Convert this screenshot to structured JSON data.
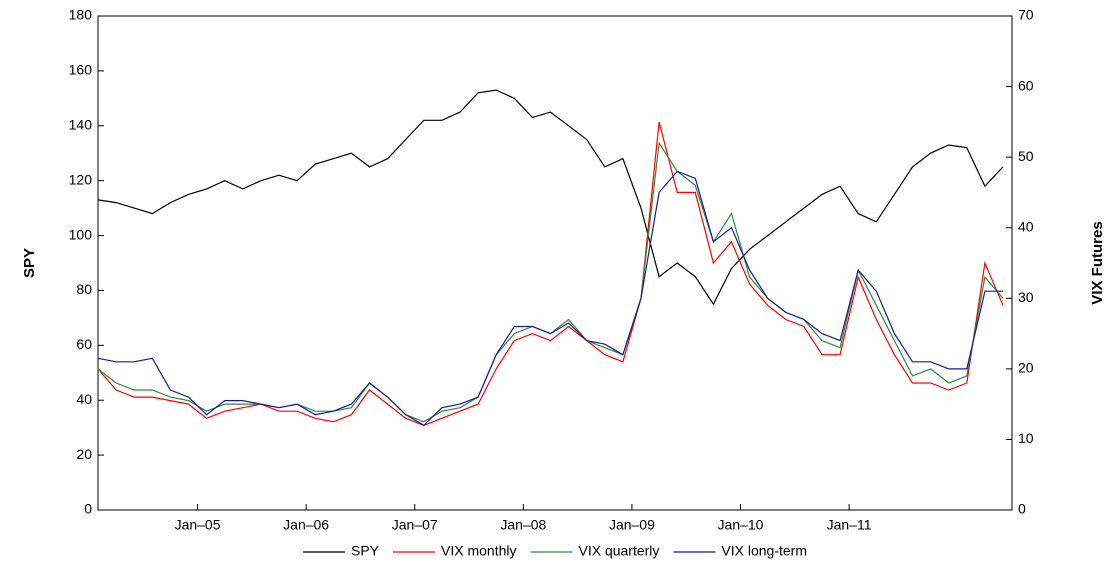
{
  "chart_data": {
    "type": "line",
    "x": [
      "2004-02",
      "2004-04",
      "2004-06",
      "2004-08",
      "2004-10",
      "2004-12",
      "2005-02",
      "2005-04",
      "2005-06",
      "2005-08",
      "2005-10",
      "2005-12",
      "2006-02",
      "2006-04",
      "2006-06",
      "2006-08",
      "2006-10",
      "2006-12",
      "2007-02",
      "2007-04",
      "2007-06",
      "2007-08",
      "2007-10",
      "2007-12",
      "2008-02",
      "2008-04",
      "2008-06",
      "2008-08",
      "2008-10",
      "2008-12",
      "2009-02",
      "2009-04",
      "2009-06",
      "2009-08",
      "2009-10",
      "2009-12",
      "2010-02",
      "2010-04",
      "2010-06",
      "2010-08",
      "2010-10",
      "2010-12",
      "2011-02",
      "2011-04",
      "2011-06",
      "2011-08",
      "2011-10",
      "2011-12",
      "2012-02",
      "2012-04",
      "2012-06"
    ],
    "series": [
      {
        "name": "SPY",
        "color": "#000000",
        "axis": "y",
        "values": [
          113,
          112,
          110,
          108,
          112,
          115,
          117,
          120,
          117,
          120,
          122,
          120,
          126,
          128,
          130,
          125,
          128,
          135,
          142,
          142,
          145,
          152,
          153,
          150,
          143,
          145,
          140,
          135,
          125,
          128,
          110,
          85,
          90,
          85,
          75,
          88,
          95,
          100,
          105,
          110,
          115,
          118,
          108,
          105,
          115,
          125,
          130,
          133,
          132,
          118,
          125
        ]
      },
      {
        "name": "VIX monthly",
        "color": "#ff0000",
        "axis": "y2",
        "values": [
          20,
          17,
          16,
          16,
          15.5,
          15,
          13,
          14,
          14.5,
          15,
          14,
          14,
          13,
          12.5,
          13.5,
          17,
          15,
          13,
          12,
          13,
          14,
          15,
          20,
          24,
          25,
          24,
          26,
          24,
          22,
          21,
          30,
          55,
          45,
          45,
          35,
          38,
          32,
          29,
          27,
          26,
          22,
          22,
          33,
          27,
          22,
          18,
          18,
          17,
          18,
          35,
          29
        ]
      },
      {
        "name": "VIX quarterly",
        "color": "#2e8b3e",
        "axis": "y2",
        "values": [
          20,
          18,
          17,
          17,
          16,
          15.5,
          14,
          15,
          15,
          15,
          14.5,
          15,
          14,
          14,
          14.5,
          18,
          16,
          13.5,
          12.5,
          14,
          14.5,
          16,
          22,
          25,
          26,
          25,
          27,
          24,
          23,
          22,
          30,
          52,
          48,
          46,
          38,
          42,
          33,
          30,
          28,
          27,
          24,
          23,
          34,
          29,
          24,
          19,
          20,
          18,
          19,
          33,
          30
        ]
      },
      {
        "name": "VIX long-term",
        "color": "#1a1a9a",
        "axis": "y2",
        "values": [
          21.5,
          21,
          21,
          21.5,
          17,
          16,
          13.5,
          15.5,
          15.5,
          15,
          14.5,
          15,
          13.5,
          14,
          15,
          18,
          16,
          13.5,
          12,
          14.5,
          15,
          16,
          22,
          26,
          26,
          25,
          26.5,
          24,
          23.5,
          22,
          30,
          45,
          48,
          47,
          38,
          40,
          34,
          30,
          28,
          27,
          25,
          24,
          34,
          31,
          25,
          21,
          21,
          20,
          20,
          31,
          31
        ]
      }
    ],
    "xlim": [
      "2004-02",
      "2012-07"
    ],
    "xticks": [
      {
        "value": "2005-01",
        "label": "Jan–05"
      },
      {
        "value": "2006-01",
        "label": "Jan–06"
      },
      {
        "value": "2007-01",
        "label": "Jan–07"
      },
      {
        "value": "2008-01",
        "label": "Jan–08"
      },
      {
        "value": "2009-01",
        "label": "Jan–09"
      },
      {
        "value": "2010-01",
        "label": "Jan–10"
      },
      {
        "value": "2011-01",
        "label": "Jan–11"
      }
    ],
    "ylabel": "SPY",
    "ylim": [
      0,
      180
    ],
    "yticks": [
      0,
      20,
      40,
      60,
      80,
      100,
      120,
      140,
      160,
      180
    ],
    "y2label": "VIX Futures",
    "y2lim": [
      0,
      70
    ],
    "y2ticks": [
      0,
      10,
      20,
      30,
      40,
      50,
      60,
      70
    ],
    "legend": "bottom",
    "grid": false
  }
}
